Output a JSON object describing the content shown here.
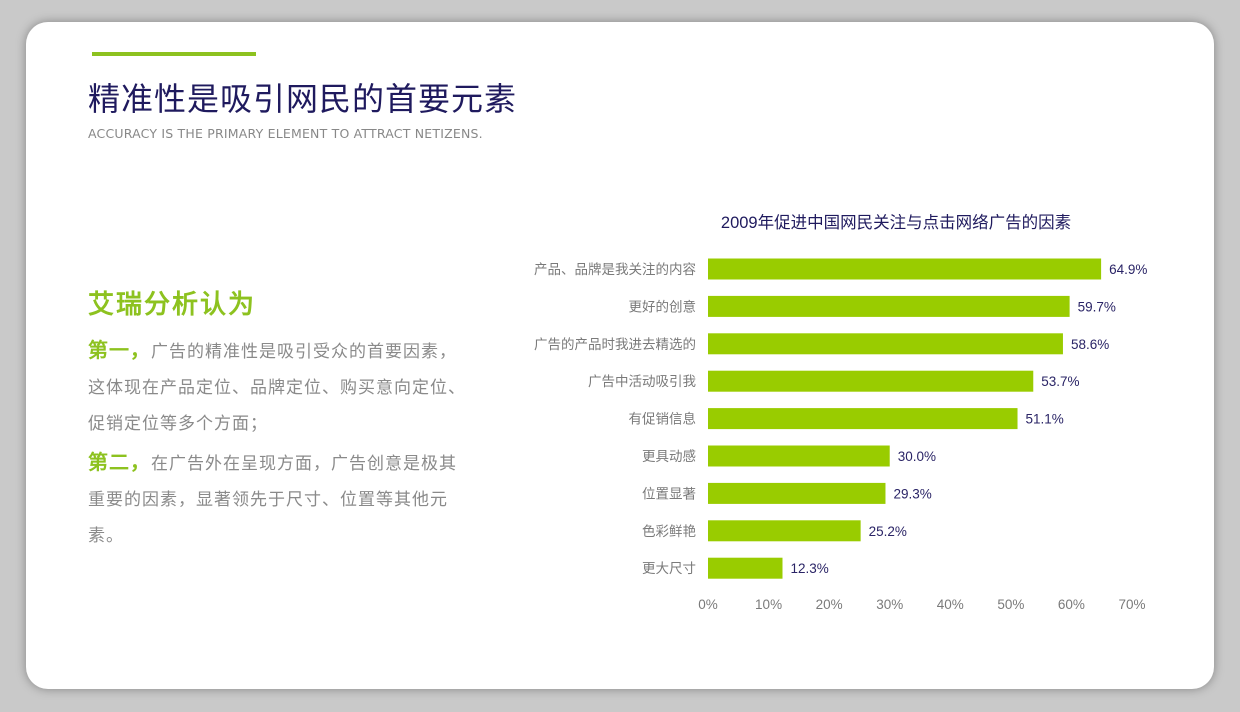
{
  "title": "精准性是吸引网民的首要元素",
  "subtitle": "ACCURACY IS THE PRIMARY ELEMENT TO ATTRACT NETIZENS.",
  "left": {
    "heading": "艾瑞分析认为",
    "p1_lead": "第一，",
    "p1_text": "广告的精准性是吸引受众的首要因素，这体现在产品定位、品牌定位、购买意向定位、促销定位等多个方面；",
    "p2_lead": "第二，",
    "p2_text": "在广告外在呈现方面，广告创意是极其重要的因素，显著领先于尺寸、位置等其他元素。"
  },
  "colors": {
    "accent": "#8dc21f",
    "title": "#1f1a5e",
    "bar": "#99cc00",
    "value_text": "#2a2466"
  },
  "chart_data": {
    "type": "bar",
    "orientation": "horizontal",
    "title": "2009年促进中国网民关注与点击网络广告的因素",
    "categories": [
      "产品、品牌是我关注的内容",
      "更好的创意",
      "广告的产品时我进去精选的",
      "广告中活动吸引我",
      "有促销信息",
      "更具动感",
      "位置显著",
      "色彩鲜艳",
      "更大尺寸"
    ],
    "values": [
      64.9,
      59.7,
      58.6,
      53.7,
      51.1,
      30.0,
      29.3,
      25.2,
      12.3
    ],
    "value_labels": [
      "64.9%",
      "59.7%",
      "58.6%",
      "53.7%",
      "51.1%",
      "30.0%",
      "29.3%",
      "25.2%",
      "12.3%"
    ],
    "xlim": [
      0,
      70
    ],
    "x_ticks": [
      "0%",
      "10%",
      "20%",
      "30%",
      "40%",
      "50%",
      "60%",
      "70%"
    ],
    "xlabel": "",
    "ylabel": "",
    "grid": false
  }
}
